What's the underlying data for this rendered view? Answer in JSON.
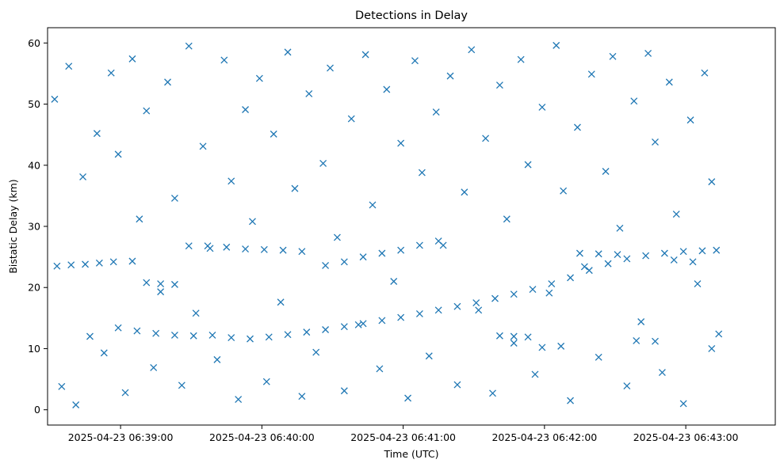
{
  "chart_data": {
    "type": "scatter",
    "title": "Detections in Delay",
    "xlabel": "Time (UTC)",
    "ylabel": "Bistatic Delay (km)",
    "marker": "x",
    "color": "#1f77b4",
    "grid": false,
    "legend": "none",
    "xlim": [
      "2025-04-23 06:38:29",
      "2025-04-23 06:43:38"
    ],
    "ylim": [
      -2.5,
      62.5
    ],
    "xticks": [
      "2025-04-23 06:39:00",
      "2025-04-23 06:40:00",
      "2025-04-23 06:41:00",
      "2025-04-23 06:42:00",
      "2025-04-23 06:43:00"
    ],
    "yticks": [
      0,
      10,
      20,
      30,
      40,
      50,
      60
    ],
    "series": [
      {
        "description_key": "main_track",
        "x": [
          "2025-04-23 06:38:59",
          "2025-04-23 06:39:07",
          "2025-04-23 06:39:15",
          "2025-04-23 06:39:23",
          "2025-04-23 06:39:31",
          "2025-04-23 06:39:39",
          "2025-04-23 06:39:47",
          "2025-04-23 06:39:55",
          "2025-04-23 06:40:03",
          "2025-04-23 06:40:11",
          "2025-04-23 06:40:19",
          "2025-04-23 06:40:27",
          "2025-04-23 06:40:35",
          "2025-04-23 06:40:43",
          "2025-04-23 06:40:51",
          "2025-04-23 06:40:59",
          "2025-04-23 06:41:07",
          "2025-04-23 06:41:15",
          "2025-04-23 06:41:23",
          "2025-04-23 06:41:31",
          "2025-04-23 06:41:39",
          "2025-04-23 06:41:47",
          "2025-04-23 06:41:55",
          "2025-04-23 06:42:03",
          "2025-04-23 06:42:11",
          "2025-04-23 06:42:19",
          "2025-04-23 06:42:27",
          "2025-04-23 06:42:35",
          "2025-04-23 06:42:43",
          "2025-04-23 06:42:51",
          "2025-04-23 06:42:59",
          "2025-04-23 06:43:07",
          "2025-04-23 06:43:13"
        ],
        "y": [
          13.4,
          12.9,
          12.5,
          12.2,
          12.1,
          12.2,
          11.8,
          11.6,
          11.9,
          12.3,
          12.7,
          13.1,
          13.6,
          14.1,
          14.6,
          15.1,
          15.7,
          16.3,
          16.9,
          17.5,
          18.2,
          18.9,
          19.7,
          20.6,
          21.6,
          22.8,
          23.9,
          24.7,
          25.2,
          25.6,
          25.9,
          26.0,
          26.1
        ]
      },
      {
        "description_key": "secondary_tracks",
        "x": [
          "2025-04-23 06:38:33",
          "2025-04-23 06:38:39",
          "2025-04-23 06:38:45",
          "2025-04-23 06:38:51",
          "2025-04-23 06:38:57",
          "2025-04-23 06:39:05",
          "2025-04-23 06:39:11",
          "2025-04-23 06:39:17",
          "2025-04-23 06:39:23",
          "2025-04-23 06:39:29",
          "2025-04-23 06:39:37",
          "2025-04-23 06:39:45",
          "2025-04-23 06:39:53",
          "2025-04-23 06:40:01",
          "2025-04-23 06:40:09",
          "2025-04-23 06:40:17",
          "2025-04-23 06:40:27",
          "2025-04-23 06:40:35",
          "2025-04-23 06:40:43",
          "2025-04-23 06:40:51",
          "2025-04-23 06:40:59",
          "2025-04-23 06:41:07",
          "2025-04-23 06:41:15",
          "2025-04-23 06:41:41",
          "2025-04-23 06:41:47",
          "2025-04-23 06:41:53",
          "2025-04-23 06:41:59",
          "2025-04-23 06:42:07",
          "2025-04-23 06:42:15",
          "2025-04-23 06:42:23",
          "2025-04-23 06:42:31",
          "2025-04-23 06:42:39",
          "2025-04-23 06:42:47",
          "2025-04-23 06:42:55",
          "2025-04-23 06:43:03",
          "2025-04-23 06:43:11"
        ],
        "y": [
          23.5,
          23.7,
          23.8,
          24.0,
          24.2,
          24.3,
          20.8,
          20.6,
          20.5,
          26.8,
          26.8,
          26.6,
          26.3,
          26.2,
          26.1,
          25.9,
          23.6,
          24.2,
          25.0,
          25.6,
          26.1,
          26.9,
          27.6,
          12.1,
          12.0,
          11.9,
          10.2,
          10.4,
          25.6,
          25.5,
          25.4,
          11.3,
          11.2,
          24.5,
          24.2,
          10.0
        ]
      },
      {
        "description_key": "clutter",
        "x": [
          "2025-04-23 06:38:32",
          "2025-04-23 06:38:35",
          "2025-04-23 06:38:38",
          "2025-04-23 06:38:41",
          "2025-04-23 06:38:44",
          "2025-04-23 06:38:47",
          "2025-04-23 06:38:50",
          "2025-04-23 06:38:53",
          "2025-04-23 06:38:56",
          "2025-04-23 06:38:59",
          "2025-04-23 06:39:02",
          "2025-04-23 06:39:05",
          "2025-04-23 06:39:08",
          "2025-04-23 06:39:11",
          "2025-04-23 06:39:14",
          "2025-04-23 06:39:17",
          "2025-04-23 06:39:20",
          "2025-04-23 06:39:23",
          "2025-04-23 06:39:26",
          "2025-04-23 06:39:29",
          "2025-04-23 06:39:32",
          "2025-04-23 06:39:35",
          "2025-04-23 06:39:38",
          "2025-04-23 06:39:41",
          "2025-04-23 06:39:44",
          "2025-04-23 06:39:47",
          "2025-04-23 06:39:50",
          "2025-04-23 06:39:53",
          "2025-04-23 06:39:56",
          "2025-04-23 06:39:59",
          "2025-04-23 06:40:02",
          "2025-04-23 06:40:05",
          "2025-04-23 06:40:08",
          "2025-04-23 06:40:11",
          "2025-04-23 06:40:14",
          "2025-04-23 06:40:17",
          "2025-04-23 06:40:20",
          "2025-04-23 06:40:23",
          "2025-04-23 06:40:26",
          "2025-04-23 06:40:29",
          "2025-04-23 06:40:32",
          "2025-04-23 06:40:35",
          "2025-04-23 06:40:38",
          "2025-04-23 06:40:41",
          "2025-04-23 06:40:44",
          "2025-04-23 06:40:47",
          "2025-04-23 06:40:50",
          "2025-04-23 06:40:53",
          "2025-04-23 06:40:56",
          "2025-04-23 06:40:59",
          "2025-04-23 06:41:02",
          "2025-04-23 06:41:05",
          "2025-04-23 06:41:08",
          "2025-04-23 06:41:11",
          "2025-04-23 06:41:14",
          "2025-04-23 06:41:17",
          "2025-04-23 06:41:20",
          "2025-04-23 06:41:23",
          "2025-04-23 06:41:26",
          "2025-04-23 06:41:29",
          "2025-04-23 06:41:32",
          "2025-04-23 06:41:35",
          "2025-04-23 06:41:38",
          "2025-04-23 06:41:41",
          "2025-04-23 06:41:44",
          "2025-04-23 06:41:47",
          "2025-04-23 06:41:50",
          "2025-04-23 06:41:53",
          "2025-04-23 06:41:56",
          "2025-04-23 06:41:59",
          "2025-04-23 06:42:02",
          "2025-04-23 06:42:05",
          "2025-04-23 06:42:08",
          "2025-04-23 06:42:11",
          "2025-04-23 06:42:14",
          "2025-04-23 06:42:17",
          "2025-04-23 06:42:20",
          "2025-04-23 06:42:23",
          "2025-04-23 06:42:26",
          "2025-04-23 06:42:29",
          "2025-04-23 06:42:32",
          "2025-04-23 06:42:35",
          "2025-04-23 06:42:38",
          "2025-04-23 06:42:41",
          "2025-04-23 06:42:44",
          "2025-04-23 06:42:47",
          "2025-04-23 06:42:50",
          "2025-04-23 06:42:53",
          "2025-04-23 06:42:56",
          "2025-04-23 06:42:59",
          "2025-04-23 06:43:02",
          "2025-04-23 06:43:05",
          "2025-04-23 06:43:08",
          "2025-04-23 06:43:11",
          "2025-04-23 06:43:14"
        ],
        "y": [
          50.8,
          3.8,
          56.2,
          0.8,
          38.1,
          12.0,
          45.2,
          9.3,
          55.1,
          41.8,
          2.8,
          57.4,
          31.2,
          48.9,
          6.9,
          19.3,
          53.6,
          34.6,
          4.0,
          59.5,
          15.8,
          43.1,
          26.4,
          8.2,
          57.2,
          37.4,
          1.7,
          49.1,
          30.8,
          54.2,
          4.6,
          45.1,
          17.6,
          58.5,
          36.2,
          2.2,
          51.7,
          9.4,
          40.3,
          55.9,
          28.2,
          3.1,
          47.6,
          13.9,
          58.1,
          33.5,
          6.7,
          52.4,
          21.0,
          43.6,
          1.9,
          57.1,
          38.8,
          8.8,
          48.7,
          26.9,
          54.6,
          4.1,
          35.6,
          58.9,
          16.3,
          44.4,
          2.7,
          53.1,
          31.2,
          10.9,
          57.3,
          40.1,
          5.8,
          49.5,
          19.1,
          59.6,
          35.8,
          1.5,
          46.2,
          23.4,
          54.9,
          8.6,
          39.0,
          57.8,
          29.7,
          3.9,
          50.5,
          14.4,
          58.3,
          43.8,
          6.1,
          53.6,
          32.0,
          1.0,
          47.4,
          20.6,
          55.1,
          37.3,
          12.4
        ]
      }
    ]
  }
}
